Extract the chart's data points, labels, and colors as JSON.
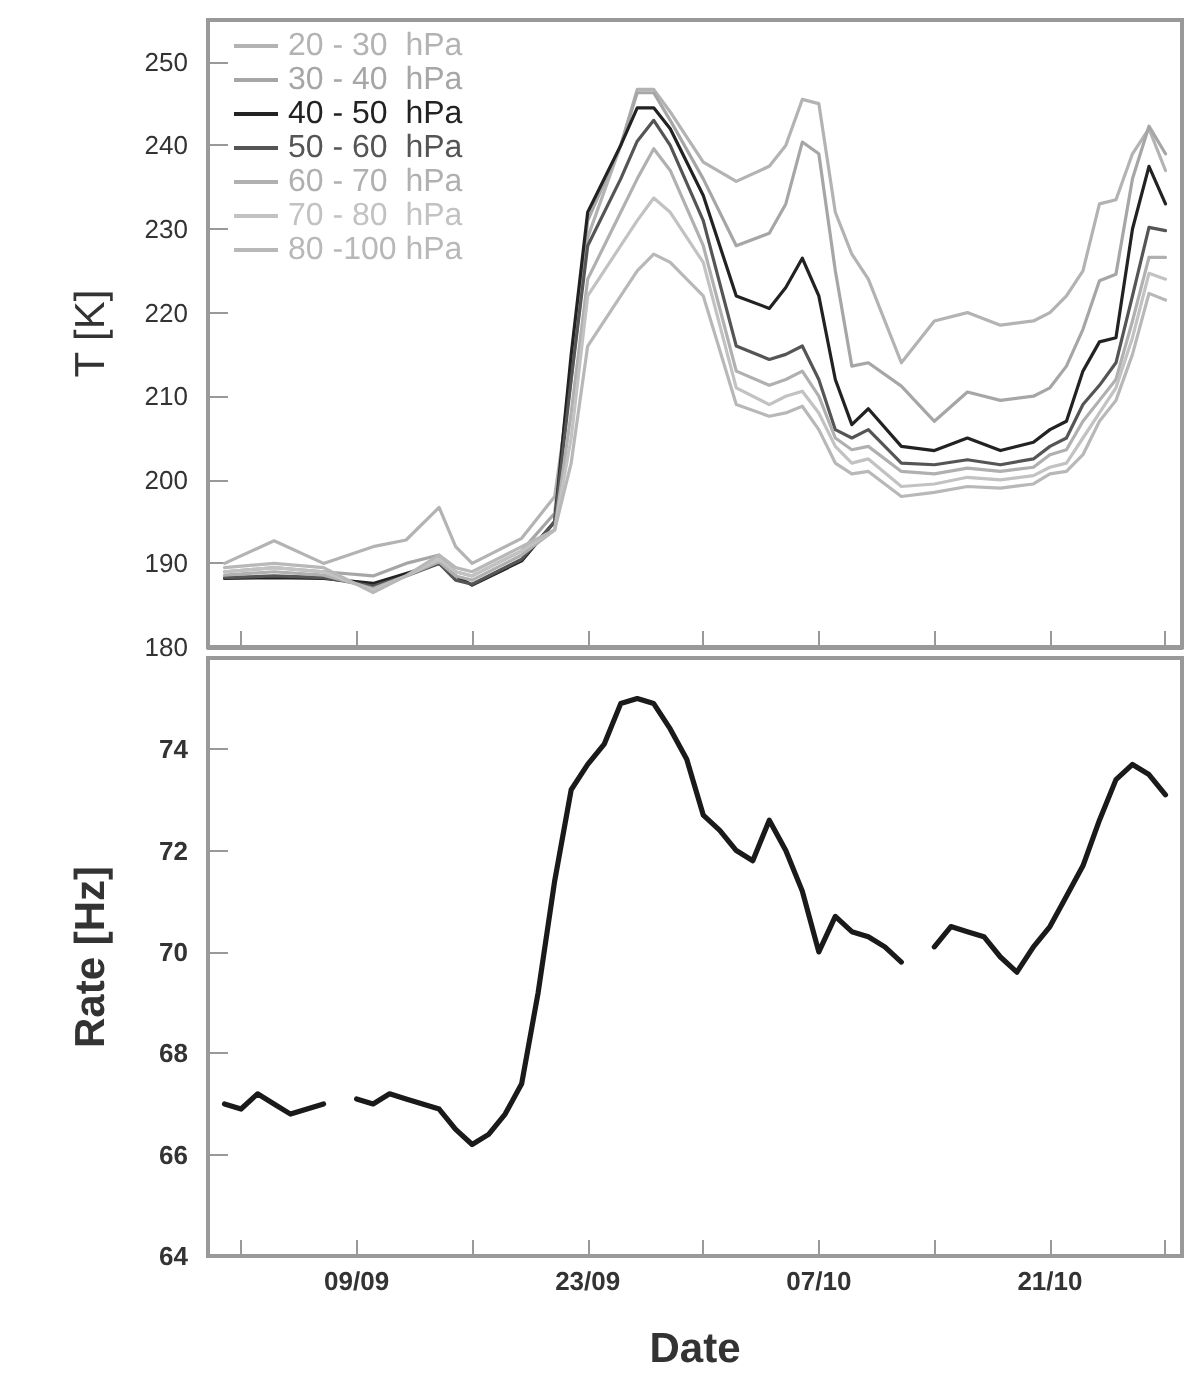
{
  "chart_data": [
    {
      "type": "line",
      "ylabel": "T [K]",
      "legend": "top left",
      "grid": false,
      "marker": "none",
      "line_style": "solid",
      "tick_labels": "y",
      "xlim": [
        "--08-31",
        "--10-29"
      ],
      "xticks": [
        {
          "value": "--09-02",
          "label": null
        },
        {
          "value": "--09-09",
          "label": "09/09"
        },
        {
          "value": "--09-16",
          "label": null
        },
        {
          "value": "--09-23",
          "label": "23/09"
        },
        {
          "value": "--09-30",
          "label": null
        },
        {
          "value": "--10-07",
          "label": "07/10"
        },
        {
          "value": "--10-14",
          "label": null
        },
        {
          "value": "--10-21",
          "label": "21/10"
        },
        {
          "value": "--10-28",
          "label": null
        }
      ],
      "ylim": [
        180,
        255
      ],
      "yticks": [
        180,
        190,
        200,
        210,
        220,
        230,
        240,
        250
      ],
      "x": [
        "--09-01",
        "--09-04",
        "--09-07",
        "--09-10",
        "--09-12",
        "--09-14",
        "--09-15",
        "--09-16",
        "--09-19",
        "--09-21",
        "--09-22",
        "--09-23",
        "--09-25",
        "--09-26",
        "--09-27",
        "--09-28",
        "--09-30",
        "--10-02",
        "--10-04",
        "--10-05",
        "--10-06",
        "--10-07",
        "--10-08",
        "--10-09",
        "--10-10",
        "--10-12",
        "--10-14",
        "--10-16",
        "--10-18",
        "--10-20",
        "--10-21",
        "--10-22",
        "--10-23",
        "--10-24",
        "--10-25",
        "--10-26",
        "--10-27",
        "--10-28"
      ],
      "series": [
        {
          "name": "20 - 30  hPa",
          "color": "#b3b3b3",
          "values": [
            190,
            192.7,
            190,
            192,
            192.8,
            196.7,
            192,
            190,
            193,
            198,
            212,
            229,
            240,
            246.7,
            246.7,
            244,
            238,
            235.7,
            237.5,
            240,
            245.5,
            245,
            232,
            227,
            224,
            214,
            219,
            220,
            218.5,
            219,
            220,
            222,
            225,
            233,
            233.5,
            239,
            242,
            237
          ]
        },
        {
          "name": "30 - 40  hPa",
          "color": "#a6a6a6",
          "values": [
            189,
            189.5,
            189,
            188.5,
            190,
            191,
            189,
            188.5,
            191.5,
            196,
            214,
            231,
            240,
            246.3,
            246.3,
            243,
            236,
            228,
            229.5,
            233,
            240.4,
            239,
            225,
            213.6,
            214,
            211.2,
            207,
            210.5,
            209.5,
            210,
            211,
            213.6,
            218,
            223.8,
            224.6,
            236,
            242.3,
            239
          ]
        },
        {
          "name": "40 - 50  hPa",
          "color": "#222222",
          "values": [
            188.2,
            188.3,
            188.2,
            187.6,
            188.8,
            190,
            188.5,
            187.4,
            190.3,
            195,
            215,
            232,
            240,
            244.5,
            244.5,
            242,
            234,
            222,
            220.5,
            223,
            226.5,
            222,
            212,
            206.6,
            208.5,
            204,
            203.5,
            205,
            203.5,
            204.5,
            206,
            207,
            213,
            216.5,
            217,
            230,
            237.5,
            233
          ]
        },
        {
          "name": "50 - 60  hPa",
          "color": "#555555",
          "values": [
            188.3,
            188.5,
            188.3,
            187.3,
            188.5,
            190,
            188,
            187.5,
            190.5,
            195,
            212,
            228,
            236,
            240.5,
            243,
            240,
            231,
            216,
            214.4,
            215,
            216,
            212,
            206,
            205,
            206,
            202,
            201.8,
            202.4,
            201.8,
            202.5,
            204,
            205,
            209,
            211.3,
            214,
            222,
            230.2,
            229.8
          ]
        },
        {
          "name": "60 - 70  hPa",
          "color": "#b0b0b0",
          "values": [
            188.6,
            189,
            188.6,
            187,
            188.5,
            190.2,
            188.5,
            188,
            191,
            194,
            208,
            224,
            232,
            236,
            239.6,
            237,
            228,
            213,
            211.3,
            212,
            213,
            210,
            205,
            203.6,
            204,
            201,
            200.7,
            201.4,
            201,
            201.5,
            203,
            203.6,
            207,
            209.5,
            212,
            219,
            226.6,
            226.6
          ]
        },
        {
          "name": "70 - 80  hPa",
          "color": "#c2c2c2",
          "values": [
            189,
            189.5,
            189,
            186.8,
            188.5,
            190.5,
            189,
            188.5,
            191.5,
            194,
            205,
            222,
            228,
            231,
            233.7,
            232,
            226,
            211,
            209,
            210,
            210.6,
            208,
            204,
            202,
            202.5,
            199.2,
            199.5,
            200.3,
            200,
            200.5,
            201.5,
            202,
            205,
            208,
            211,
            217,
            224.7,
            224
          ]
        },
        {
          "name": "80 -100 hPa",
          "color": "#b8b8b8",
          "values": [
            189.5,
            190,
            189.5,
            186.5,
            188.5,
            191,
            189.5,
            189,
            192,
            194,
            202,
            216,
            222,
            225,
            227,
            226,
            222,
            209,
            207.6,
            208,
            208.8,
            206,
            202,
            200.7,
            201,
            198,
            198.5,
            199.2,
            199,
            199.5,
            200.7,
            201,
            203,
            207,
            209.5,
            215,
            222.3,
            221.5
          ]
        }
      ]
    },
    {
      "type": "line",
      "xlabel": "Date",
      "ylabel": "Rate [Hz]",
      "legend": false,
      "grid": false,
      "marker": "none",
      "line_style": "solid",
      "xlim": [
        "--08-31",
        "--10-29"
      ],
      "xticks": [
        {
          "value": "--09-02",
          "label": null
        },
        {
          "value": "--09-09",
          "label": "09/09"
        },
        {
          "value": "--09-16",
          "label": null
        },
        {
          "value": "--09-23",
          "label": "23/09"
        },
        {
          "value": "--09-30",
          "label": null
        },
        {
          "value": "--10-07",
          "label": "07/10"
        },
        {
          "value": "--10-14",
          "label": null
        },
        {
          "value": "--10-21",
          "label": "21/10"
        },
        {
          "value": "--10-28",
          "label": null
        }
      ],
      "ylim": [
        64,
        75.8
      ],
      "yticks": [
        64,
        66,
        68,
        70,
        72,
        74
      ],
      "x": [
        "--09-01",
        "--09-02",
        "--09-03",
        "--09-04",
        "--09-05",
        "--09-06",
        "--09-07",
        "--09-08",
        "--09-09",
        "--09-10",
        "--09-11",
        "--09-12",
        "--09-13",
        "--09-14",
        "--09-15",
        "--09-16",
        "--09-17",
        "--09-18",
        "--09-19",
        "--09-20",
        "--09-21",
        "--09-22",
        "--09-23",
        "--09-24",
        "--09-25",
        "--09-26",
        "--09-27",
        "--09-28",
        "--09-29",
        "--09-30",
        "--10-01",
        "--10-02",
        "--10-03",
        "--10-04",
        "--10-05",
        "--10-06",
        "--10-07",
        "--10-08",
        "--10-09",
        "--10-10",
        "--10-11",
        "--10-12",
        "--10-13",
        "--10-14",
        "--10-15",
        "--10-16",
        "--10-17",
        "--10-18",
        "--10-19",
        "--10-20",
        "--10-21",
        "--10-22",
        "--10-23",
        "--10-24",
        "--10-25",
        "--10-26",
        "--10-27",
        "--10-28"
      ],
      "series": [
        {
          "color": "#1a1a1a",
          "values": [
            67.0,
            66.9,
            67.2,
            67.0,
            66.8,
            66.9,
            67.0,
            null,
            67.1,
            67.0,
            67.2,
            67.1,
            67.0,
            66.9,
            66.5,
            66.2,
            66.4,
            66.8,
            67.4,
            69.2,
            71.4,
            73.2,
            73.7,
            74.1,
            74.9,
            75.0,
            74.9,
            74.4,
            73.8,
            72.7,
            72.4,
            72.0,
            71.8,
            72.6,
            72.0,
            71.2,
            70.0,
            70.7,
            70.4,
            70.3,
            70.1,
            69.8,
            null,
            70.1,
            70.5,
            70.4,
            70.3,
            69.9,
            69.6,
            70.1,
            70.5,
            71.1,
            71.7,
            72.6,
            73.4,
            73.7,
            73.5,
            73.1
          ]
        }
      ]
    }
  ]
}
